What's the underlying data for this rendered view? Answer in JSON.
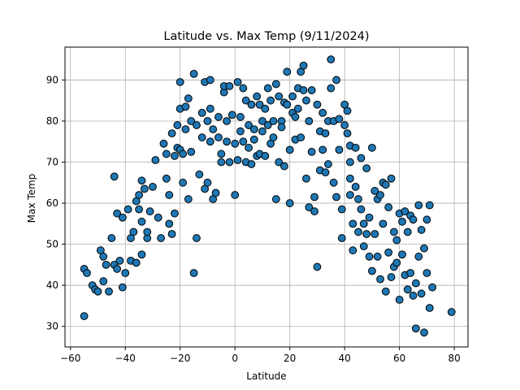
{
  "chart_data": {
    "type": "scatter",
    "title": "Latitude vs. Max Temp (9/11/2024)",
    "xlabel": "Latitude",
    "ylabel": "Max Temp",
    "xlim": [
      -62,
      85
    ],
    "ylim": [
      25,
      98
    ],
    "xticks": [
      -60,
      -40,
      -20,
      0,
      20,
      40,
      60,
      80
    ],
    "yticks": [
      30,
      40,
      50,
      60,
      70,
      80,
      90
    ],
    "grid": true,
    "marker_color": "#1f77b4",
    "marker_edge_color": "#000000",
    "series": [
      {
        "points": [
          [
            -55,
            32.5
          ],
          [
            -55,
            44
          ],
          [
            -54,
            43
          ],
          [
            -52,
            40
          ],
          [
            -51,
            39
          ],
          [
            -50,
            38.5
          ],
          [
            -49,
            48.5
          ],
          [
            -48,
            47
          ],
          [
            -48,
            41
          ],
          [
            -47,
            45
          ],
          [
            -46,
            38.5
          ],
          [
            -45,
            51.5
          ],
          [
            -44,
            66.5
          ],
          [
            -44,
            45
          ],
          [
            -43,
            57.5
          ],
          [
            -43,
            44
          ],
          [
            -42,
            46
          ],
          [
            -41,
            39.5
          ],
          [
            -41,
            56.5
          ],
          [
            -40,
            43
          ],
          [
            -39,
            58.5
          ],
          [
            -38,
            51.5
          ],
          [
            -38,
            46
          ],
          [
            -37,
            53
          ],
          [
            -36,
            45.5
          ],
          [
            -36,
            60.5
          ],
          [
            -35,
            62
          ],
          [
            -35,
            58.5
          ],
          [
            -34,
            55.5
          ],
          [
            -34,
            65.5
          ],
          [
            -34,
            47.5
          ],
          [
            -33,
            63.5
          ],
          [
            -32,
            51.5
          ],
          [
            -32,
            53
          ],
          [
            -31,
            58
          ],
          [
            -30,
            64
          ],
          [
            -29,
            70.5
          ],
          [
            -28,
            56.5
          ],
          [
            -27,
            51.5
          ],
          [
            -26,
            74.5
          ],
          [
            -25,
            72
          ],
          [
            -25,
            66
          ],
          [
            -24,
            55
          ],
          [
            -24,
            62
          ],
          [
            -23,
            77
          ],
          [
            -23,
            52.5
          ],
          [
            -22,
            71.5
          ],
          [
            -22,
            57.5
          ],
          [
            -21,
            79
          ],
          [
            -21,
            73.5
          ],
          [
            -20,
            83
          ],
          [
            -20,
            73
          ],
          [
            -20,
            89.5
          ],
          [
            -19,
            72
          ],
          [
            -19,
            65
          ],
          [
            -18,
            78
          ],
          [
            -18,
            83.5
          ],
          [
            -17,
            85.5
          ],
          [
            -17,
            61
          ],
          [
            -16,
            72.5
          ],
          [
            -16,
            80
          ],
          [
            -15,
            91.5
          ],
          [
            -15,
            43
          ],
          [
            -14,
            79
          ],
          [
            -14,
            51.5
          ],
          [
            -13,
            67
          ],
          [
            -12,
            82
          ],
          [
            -12,
            76
          ],
          [
            -11,
            89.5
          ],
          [
            -11,
            63.5
          ],
          [
            -10,
            80
          ],
          [
            -10,
            65
          ],
          [
            -9,
            83
          ],
          [
            -9,
            90
          ],
          [
            -9,
            75
          ],
          [
            -8,
            78
          ],
          [
            -8,
            61
          ],
          [
            -7,
            62.5
          ],
          [
            -6,
            76
          ],
          [
            -6,
            81
          ],
          [
            -5,
            70
          ],
          [
            -5,
            72
          ],
          [
            -4,
            87
          ],
          [
            -4,
            88.5
          ],
          [
            -3,
            80
          ],
          [
            -3,
            75
          ],
          [
            -2,
            88.5
          ],
          [
            -2,
            70
          ],
          [
            -1,
            81.5
          ],
          [
            0,
            74.5
          ],
          [
            0,
            62
          ],
          [
            1,
            89.5
          ],
          [
            1,
            70.5
          ],
          [
            2,
            77.5
          ],
          [
            2,
            81
          ],
          [
            3,
            88
          ],
          [
            3,
            75
          ],
          [
            4,
            70
          ],
          [
            4,
            85
          ],
          [
            5,
            73.5
          ],
          [
            5,
            79
          ],
          [
            6,
            84
          ],
          [
            6,
            69.5
          ],
          [
            7,
            75.5
          ],
          [
            7,
            78
          ],
          [
            8,
            86
          ],
          [
            8,
            71.5
          ],
          [
            9,
            84
          ],
          [
            9,
            72
          ],
          [
            10,
            80
          ],
          [
            10,
            77.5
          ],
          [
            11,
            83
          ],
          [
            11,
            71.5
          ],
          [
            12,
            88
          ],
          [
            12,
            79
          ],
          [
            13,
            74.5
          ],
          [
            13,
            85
          ],
          [
            14,
            80
          ],
          [
            14,
            76
          ],
          [
            15,
            89
          ],
          [
            15,
            61
          ],
          [
            16,
            86
          ],
          [
            16,
            70
          ],
          [
            17,
            80
          ],
          [
            17,
            78.5
          ],
          [
            18,
            84.5
          ],
          [
            18,
            69
          ],
          [
            19,
            92
          ],
          [
            19,
            84
          ],
          [
            20,
            73
          ],
          [
            20,
            60
          ],
          [
            21,
            86
          ],
          [
            21,
            82
          ],
          [
            22,
            81
          ],
          [
            22,
            75.5
          ],
          [
            23,
            88
          ],
          [
            23,
            83
          ],
          [
            24,
            92
          ],
          [
            24,
            76
          ],
          [
            25,
            93.5
          ],
          [
            25,
            87.5
          ],
          [
            26,
            85
          ],
          [
            26,
            66
          ],
          [
            27,
            80
          ],
          [
            27,
            59
          ],
          [
            28,
            87.5
          ],
          [
            28,
            72.5
          ],
          [
            29,
            58
          ],
          [
            29,
            61.5
          ],
          [
            30,
            84
          ],
          [
            30,
            44.5
          ],
          [
            31,
            77.5
          ],
          [
            31,
            68
          ],
          [
            32,
            82
          ],
          [
            32,
            73
          ],
          [
            33,
            77
          ],
          [
            33,
            67.5
          ],
          [
            34,
            80
          ],
          [
            34,
            69.5
          ],
          [
            35,
            88
          ],
          [
            35,
            95
          ],
          [
            36,
            80
          ],
          [
            36,
            65
          ],
          [
            37,
            90
          ],
          [
            37,
            61.5
          ],
          [
            38,
            80.5
          ],
          [
            38,
            73
          ],
          [
            39,
            58.5
          ],
          [
            39,
            51.5
          ],
          [
            40,
            84
          ],
          [
            40,
            79
          ],
          [
            41,
            82.5
          ],
          [
            41,
            77
          ],
          [
            42,
            74
          ],
          [
            42,
            70
          ],
          [
            42,
            66
          ],
          [
            42,
            62
          ],
          [
            43,
            55
          ],
          [
            43,
            48.5
          ],
          [
            44,
            73.5
          ],
          [
            44,
            64
          ],
          [
            45,
            61
          ],
          [
            45,
            53
          ],
          [
            46,
            58.5
          ],
          [
            46,
            71
          ],
          [
            47,
            55
          ],
          [
            47,
            49.5
          ],
          [
            48,
            68.5
          ],
          [
            48,
            52.5
          ],
          [
            49,
            56.5
          ],
          [
            49,
            47
          ],
          [
            50,
            73.5
          ],
          [
            50,
            43.5
          ],
          [
            51,
            63
          ],
          [
            51,
            52.5
          ],
          [
            52,
            61
          ],
          [
            52,
            47
          ],
          [
            53,
            62
          ],
          [
            53,
            41.5
          ],
          [
            54,
            65
          ],
          [
            54,
            55
          ],
          [
            55,
            64.5
          ],
          [
            55,
            38.5
          ],
          [
            56,
            59
          ],
          [
            56,
            48
          ],
          [
            57,
            66
          ],
          [
            57,
            42
          ],
          [
            58,
            53
          ],
          [
            58,
            44.5
          ],
          [
            59,
            51
          ],
          [
            59,
            45.5
          ],
          [
            60,
            57.5
          ],
          [
            60,
            36.5
          ],
          [
            61,
            55.5
          ],
          [
            61,
            47.5
          ],
          [
            62,
            58
          ],
          [
            62,
            42.5
          ],
          [
            63,
            53
          ],
          [
            63,
            39
          ],
          [
            64,
            57
          ],
          [
            64,
            43
          ],
          [
            65,
            56
          ],
          [
            65,
            37.5
          ],
          [
            66,
            40.5
          ],
          [
            66,
            29.5
          ],
          [
            67,
            59.5
          ],
          [
            67,
            47
          ],
          [
            68,
            53.5
          ],
          [
            68,
            38
          ],
          [
            69,
            49
          ],
          [
            69,
            28.5
          ],
          [
            70,
            56
          ],
          [
            70,
            43
          ],
          [
            71,
            59.5
          ],
          [
            71,
            34.5
          ],
          [
            72,
            39.5
          ],
          [
            79,
            33.5
          ]
        ]
      }
    ]
  }
}
